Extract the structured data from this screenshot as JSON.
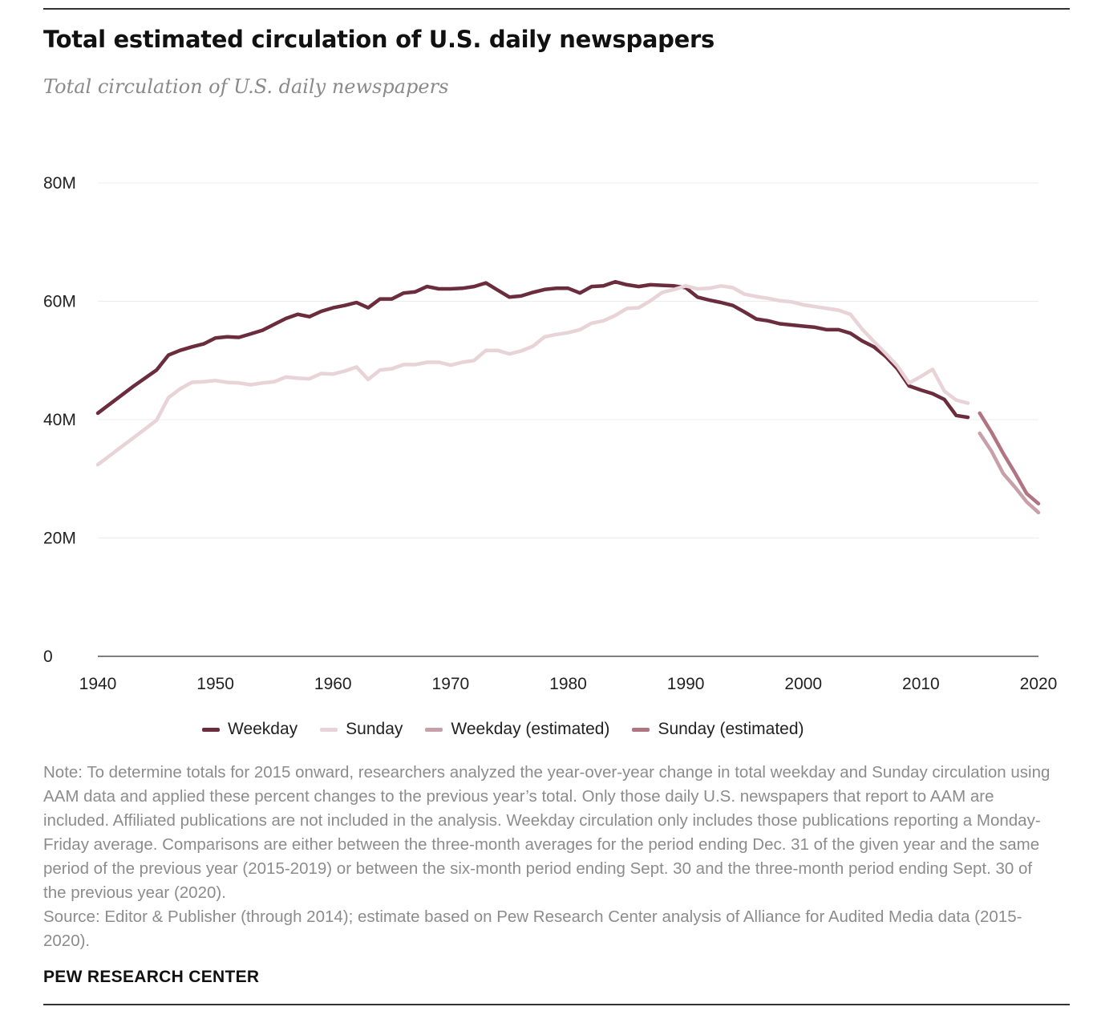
{
  "header": {
    "title": "Total estimated circulation of U.S. daily newspapers",
    "subtitle": "Total circulation of U.S. daily newspapers"
  },
  "footer": {
    "note": "Note: To determine totals for 2015 onward, researchers analyzed the year-over-year change in total weekday and Sunday circulation using AAM data and applied these percent changes to the previous year’s total. Only those daily U.S. newspapers that report to AAM are included. Affiliated publications are not included in the analysis. Weekday circulation only includes those publications reporting a Monday-Friday average. Comparisons are either between the three-month averages for the period ending Dec. 31 of the given year and the same period of the previous year (2015-2019) or between the six-month period ending Sept. 30 and the three-month period ending Sept. 30 of the previous year (2020).",
    "source": "Source: Editor & Publisher (through 2014); estimate based on Pew Research Center analysis of Alliance for Audited Media data (2015-2020).",
    "brand": "PEW RESEARCH CENTER"
  },
  "chart_data": {
    "type": "line",
    "title": "Total estimated circulation of U.S. daily newspapers",
    "subtitle": "Total circulation of U.S. daily newspapers",
    "xlabel": "",
    "ylabel": "",
    "xlim": [
      1940,
      2020
    ],
    "ylim": [
      0,
      80
    ],
    "unit": "millions",
    "grid": true,
    "legend_position": "bottom",
    "x_ticks": [
      1940,
      1950,
      1960,
      1970,
      1980,
      1990,
      2000,
      2010,
      2020
    ],
    "y_ticks": [
      0,
      20,
      40,
      60,
      80
    ],
    "y_tick_labels": [
      "0",
      "20M",
      "40M",
      "60M",
      "80M"
    ],
    "series": [
      {
        "name": "Weekday",
        "color": "#6b2d3e",
        "x": [
          1940,
          1941,
          1942,
          1943,
          1944,
          1945,
          1946,
          1947,
          1948,
          1949,
          1950,
          1951,
          1952,
          1953,
          1954,
          1955,
          1956,
          1957,
          1958,
          1959,
          1960,
          1961,
          1962,
          1963,
          1964,
          1965,
          1966,
          1967,
          1968,
          1969,
          1970,
          1971,
          1972,
          1973,
          1974,
          1975,
          1976,
          1977,
          1978,
          1979,
          1980,
          1981,
          1982,
          1983,
          1984,
          1985,
          1986,
          1987,
          1988,
          1989,
          1990,
          1991,
          1992,
          1993,
          1994,
          1995,
          1996,
          1997,
          1998,
          1999,
          2000,
          2001,
          2002,
          2003,
          2004,
          2005,
          2006,
          2007,
          2008,
          2009,
          2010,
          2011,
          2012,
          2013,
          2014
        ],
        "values": [
          41.1,
          42.6,
          44.1,
          45.6,
          47.0,
          48.4,
          50.9,
          51.7,
          52.3,
          52.8,
          53.8,
          54.0,
          53.9,
          54.5,
          55.1,
          56.1,
          57.1,
          57.8,
          57.4,
          58.3,
          58.9,
          59.3,
          59.8,
          58.9,
          60.4,
          60.4,
          61.4,
          61.6,
          62.5,
          62.1,
          62.1,
          62.2,
          62.5,
          63.1,
          61.9,
          60.7,
          60.9,
          61.5,
          62.0,
          62.2,
          62.2,
          61.4,
          62.5,
          62.6,
          63.3,
          62.8,
          62.5,
          62.8,
          62.7,
          62.6,
          62.3,
          60.7,
          60.2,
          59.8,
          59.3,
          58.2,
          57.0,
          56.7,
          56.2,
          56.0,
          55.8,
          55.6,
          55.2,
          55.2,
          54.6,
          53.3,
          52.3,
          50.7,
          48.6,
          45.7,
          45.0,
          44.4,
          43.4,
          40.7,
          40.4
        ]
      },
      {
        "name": "Sunday",
        "color": "#e8d3d9",
        "x": [
          1940,
          1941,
          1942,
          1943,
          1944,
          1945,
          1946,
          1947,
          1948,
          1949,
          1950,
          1951,
          1952,
          1953,
          1954,
          1955,
          1956,
          1957,
          1958,
          1959,
          1960,
          1961,
          1962,
          1963,
          1964,
          1965,
          1966,
          1967,
          1968,
          1969,
          1970,
          1971,
          1972,
          1973,
          1974,
          1975,
          1976,
          1977,
          1978,
          1979,
          1980,
          1981,
          1982,
          1983,
          1984,
          1985,
          1986,
          1987,
          1988,
          1989,
          1990,
          1991,
          1992,
          1993,
          1994,
          1995,
          1996,
          1997,
          1998,
          1999,
          2000,
          2001,
          2002,
          2003,
          2004,
          2005,
          2006,
          2007,
          2008,
          2009,
          2010,
          2011,
          2012,
          2013,
          2014
        ],
        "values": [
          32.4,
          33.9,
          35.4,
          36.9,
          38.4,
          39.9,
          43.7,
          45.2,
          46.3,
          46.4,
          46.6,
          46.3,
          46.2,
          45.9,
          46.2,
          46.4,
          47.2,
          47.0,
          46.9,
          47.8,
          47.7,
          48.2,
          48.9,
          46.8,
          48.4,
          48.6,
          49.3,
          49.3,
          49.7,
          49.7,
          49.2,
          49.7,
          50.0,
          51.7,
          51.7,
          51.1,
          51.6,
          52.4,
          54.0,
          54.4,
          54.7,
          55.2,
          56.3,
          56.7,
          57.6,
          58.8,
          58.9,
          60.1,
          61.5,
          62.0,
          62.6,
          62.1,
          62.2,
          62.6,
          62.3,
          61.2,
          60.8,
          60.5,
          60.1,
          59.9,
          59.4,
          59.1,
          58.8,
          58.5,
          57.8,
          55.3,
          53.2,
          51.2,
          49.1,
          46.2,
          47.3,
          48.5,
          44.8,
          43.3,
          42.8
        ]
      },
      {
        "name": "Weekday (estimated)",
        "color": "#c8a0aa",
        "x": [
          2015,
          2016,
          2017,
          2018,
          2019,
          2020
        ],
        "values": [
          37.7,
          34.7,
          30.9,
          28.6,
          26.1,
          24.3
        ]
      },
      {
        "name": "Sunday (estimated)",
        "color": "#b07483",
        "x": [
          2015,
          2016,
          2017,
          2018,
          2019,
          2020
        ],
        "values": [
          41.1,
          37.9,
          34.3,
          31.0,
          27.5,
          25.8
        ]
      }
    ]
  }
}
